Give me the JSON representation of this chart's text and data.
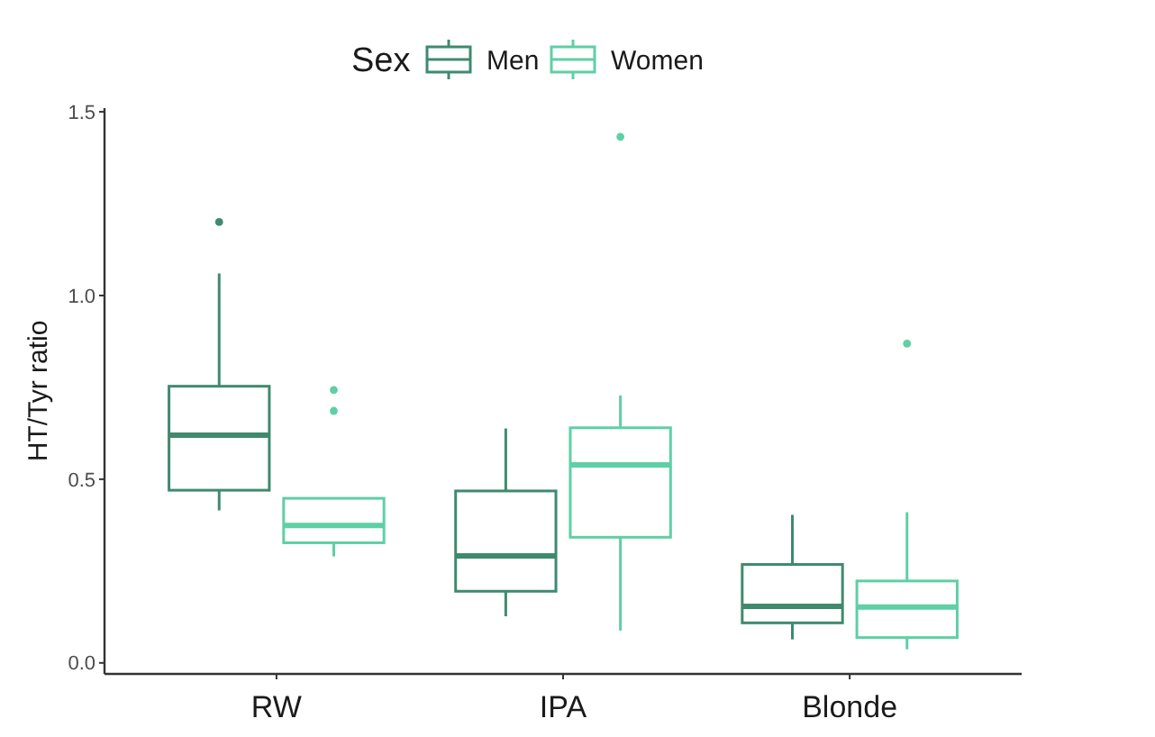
{
  "chart_data": {
    "type": "box",
    "ylabel": "HT/Tyr ratio",
    "legend_title": "Sex",
    "legend": "top",
    "categories": [
      "RW",
      "IPA",
      "Blonde"
    ],
    "ylim": [
      -0.03,
      1.51
    ],
    "yticks": [
      {
        "value": 0,
        "label": "0.0"
      },
      0.5,
      {
        "value": 1,
        "label": "1.0"
      },
      1.5
    ],
    "grid": false,
    "series": [
      {
        "name": "Men",
        "color": "#3f8a6e",
        "boxes": [
          {
            "low": 0.415,
            "q1": 0.47,
            "median": 0.62,
            "q3": 0.753,
            "high": 1.06,
            "outliers": [
              1.2
            ]
          },
          {
            "low": 0.127,
            "q1": 0.195,
            "median": 0.291,
            "q3": 0.468,
            "high": 0.638
          },
          {
            "low": 0.064,
            "q1": 0.109,
            "median": 0.154,
            "q3": 0.268,
            "high": 0.403
          }
        ]
      },
      {
        "name": "Women",
        "color": "#5fcfa5",
        "boxes": [
          {
            "low": 0.29,
            "q1": 0.327,
            "median": 0.374,
            "q3": 0.448,
            "high": 0.448,
            "outliers": [
              0.743,
              0.686
            ]
          },
          {
            "low": 0.088,
            "q1": 0.342,
            "median": 0.539,
            "q3": 0.64,
            "high": 0.728,
            "outliers": [
              1.432
            ]
          },
          {
            "low": 0.037,
            "q1": 0.069,
            "median": 0.152,
            "q3": 0.223,
            "high": 0.41,
            "outliers": [
              0.869
            ]
          }
        ]
      }
    ]
  }
}
